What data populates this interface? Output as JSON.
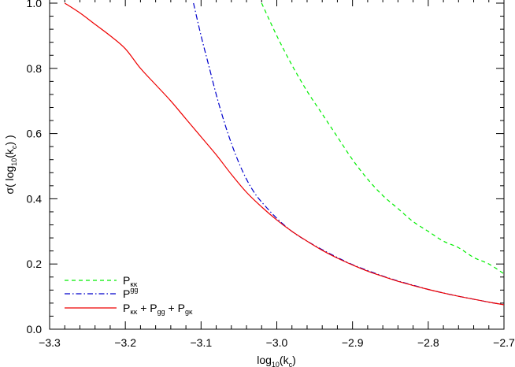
{
  "chart_data": {
    "type": "line",
    "title": "",
    "xlabel": {
      "base": "log",
      "sub1": "10",
      "mid": "(k",
      "sub2": "c",
      "end": ")"
    },
    "ylabel": {
      "pre": "σ( log",
      "sub1": "10",
      "mid": "(k",
      "sub2": "c",
      "end": ") )"
    },
    "xlim": [
      -3.3,
      -2.7
    ],
    "ylim": [
      0.0,
      1.0
    ],
    "xticks": [
      -3.3,
      -3.2,
      -3.1,
      -3.0,
      -2.9,
      -2.8,
      -2.7
    ],
    "xtick_labels": [
      "−3.3",
      "−3.2",
      "−3.1",
      "−3.0",
      "−2.9",
      "−2.8",
      "−2.7"
    ],
    "yticks": [
      0.0,
      0.2,
      0.4,
      0.6,
      0.8,
      1.0
    ],
    "ytick_labels": [
      "0.0",
      "0.2",
      "0.4",
      "0.6",
      "0.8",
      "1.0"
    ],
    "grid": false,
    "legend_position": "bottom-left",
    "series": [
      {
        "legend": {
          "base": "P",
          "sub": "κκ"
        },
        "color": "#00ee00",
        "style": "dashed",
        "x": [
          -3.02,
          -3.0,
          -2.98,
          -2.96,
          -2.94,
          -2.92,
          -2.9,
          -2.88,
          -2.86,
          -2.84,
          -2.82,
          -2.8,
          -2.78,
          -2.76,
          -2.74,
          -2.72,
          -2.7
        ],
        "y": [
          1.0,
          0.9,
          0.81,
          0.73,
          0.66,
          0.59,
          0.52,
          0.46,
          0.41,
          0.37,
          0.33,
          0.3,
          0.27,
          0.25,
          0.22,
          0.2,
          0.17
        ]
      },
      {
        "legend": {
          "base": "P",
          "sup": "gg"
        },
        "color": "#0000cc",
        "style": "dashdot",
        "x": [
          -3.11,
          -3.1,
          -3.09,
          -3.08,
          -3.07,
          -3.06,
          -3.05,
          -3.04,
          -3.03,
          -3.02,
          -3.0,
          -2.98,
          -2.96,
          -2.94,
          -2.92,
          -2.9,
          -2.88,
          -2.86,
          -2.84,
          -2.82,
          -2.8,
          -2.78,
          -2.76,
          -2.74,
          -2.72,
          -2.7
        ],
        "y": [
          1.0,
          0.9,
          0.81,
          0.72,
          0.64,
          0.57,
          0.51,
          0.46,
          0.42,
          0.39,
          0.34,
          0.3,
          0.27,
          0.244,
          0.22,
          0.198,
          0.18,
          0.163,
          0.148,
          0.135,
          0.122,
          0.111,
          0.101,
          0.092,
          0.083,
          0.075
        ]
      },
      {
        "legend": {
          "p1": "P",
          "s1": "κκ",
          "plus1": " + P",
          "s2": "gg",
          "plus2": " + P",
          "s3": "gκ"
        },
        "color": "#ee0000",
        "style": "solid",
        "x": [
          -3.28,
          -3.26,
          -3.24,
          -3.22,
          -3.2,
          -3.18,
          -3.16,
          -3.14,
          -3.12,
          -3.1,
          -3.08,
          -3.06,
          -3.04,
          -3.02,
          -3.0,
          -2.98,
          -2.96,
          -2.94,
          -2.92,
          -2.9,
          -2.88,
          -2.86,
          -2.84,
          -2.82,
          -2.8,
          -2.78,
          -2.76,
          -2.74,
          -2.72,
          -2.7
        ],
        "y": [
          1.0,
          0.97,
          0.935,
          0.9,
          0.86,
          0.8,
          0.75,
          0.7,
          0.645,
          0.59,
          0.535,
          0.475,
          0.42,
          0.375,
          0.335,
          0.3,
          0.27,
          0.242,
          0.218,
          0.197,
          0.178,
          0.162,
          0.147,
          0.134,
          0.122,
          0.111,
          0.101,
          0.092,
          0.083,
          0.075
        ]
      }
    ]
  }
}
